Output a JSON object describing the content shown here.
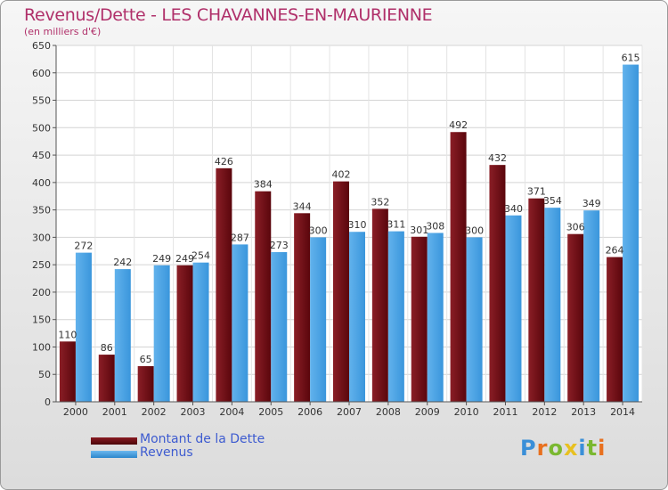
{
  "header": {
    "title": "Revenus/Dette - LES CHAVANNES-EN-MAURIENNE",
    "subtitle": "(en milliers d'€)"
  },
  "colors": {
    "title": "#b0306a",
    "dette": "#6b0c12",
    "revenus": "#3f9fe0",
    "legend_text": "#3d5bd0"
  },
  "legend": {
    "dette_label": "Montant de la Dette",
    "revenus_label": "Revenus"
  },
  "logo": {
    "text": "Proxiti",
    "letters": [
      "P",
      "r",
      "o",
      "x",
      "i",
      "t",
      "i"
    ],
    "letter_colors": [
      "#3a8fd8",
      "#e8701e",
      "#7ab830",
      "#e8c020",
      "#3a8fd8",
      "#7ab830",
      "#e8701e"
    ]
  },
  "chart_data": {
    "type": "bar",
    "title": "Revenus/Dette - LES CHAVANNES-EN-MAURIENNE",
    "subtitle": "(en milliers d'€)",
    "xlabel": "",
    "ylabel": "",
    "ylim": [
      0,
      650
    ],
    "ytick_step": 50,
    "yticks": [
      0,
      50,
      100,
      150,
      200,
      250,
      300,
      350,
      400,
      450,
      500,
      550,
      600,
      650
    ],
    "grid": true,
    "legend_position": "bottom-left",
    "categories": [
      "2000",
      "2001",
      "2002",
      "2003",
      "2004",
      "2005",
      "2006",
      "2007",
      "2008",
      "2009",
      "2010",
      "2011",
      "2012",
      "2013",
      "2014"
    ],
    "series": [
      {
        "name": "Montant de la Dette",
        "values": [
          110,
          86,
          65,
          249,
          426,
          384,
          344,
          402,
          352,
          301,
          492,
          432,
          371,
          306,
          264
        ]
      },
      {
        "name": "Revenus",
        "values": [
          272,
          242,
          249,
          254,
          287,
          273,
          300,
          310,
          311,
          308,
          300,
          340,
          354,
          349,
          615
        ]
      }
    ],
    "data_labels": [
      [
        "110",
        "86",
        "65",
        "249",
        "426",
        "384",
        "344",
        "402",
        "352",
        "301",
        "492",
        "432",
        "371",
        "306",
        "264"
      ],
      [
        "272",
        "242",
        "249",
        "254",
        "287",
        "273",
        "300",
        "310",
        "311",
        "308",
        "300",
        "340",
        "354",
        "349",
        "615"
      ]
    ]
  }
}
